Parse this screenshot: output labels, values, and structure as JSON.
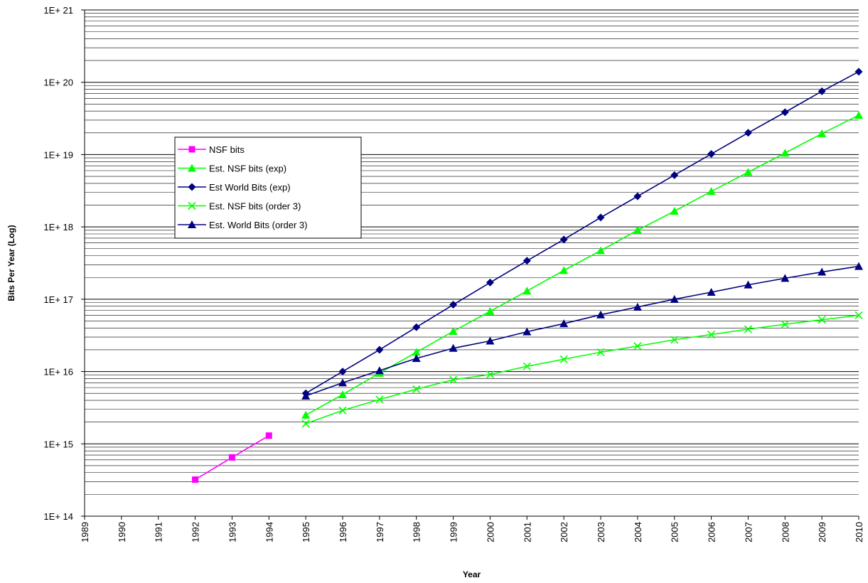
{
  "chart_data": {
    "type": "line",
    "title": "",
    "xlabel": "Year",
    "ylabel": "Bits Per Year (Log)",
    "yscale": "log",
    "ylim": [
      100000000000000.0,
      1e+21
    ],
    "x_categories": [
      "1989",
      "1990",
      "1991",
      "1992",
      "1993",
      "1994",
      "1995",
      "1996",
      "1997",
      "1998",
      "1999",
      "2000",
      "2001",
      "2002",
      "2003",
      "2004",
      "2005",
      "2006",
      "2007",
      "2008",
      "2009",
      "2010"
    ],
    "y_tick_labels": [
      "1E+ 14",
      "1E+ 15",
      "1E+ 16",
      "1E+ 17",
      "1E+ 18",
      "1E+ 19",
      "1E+ 20",
      "1E+ 21"
    ],
    "grid": true,
    "legend_position": "left-middle",
    "series": [
      {
        "name": "NSF bits",
        "color": "#ff00ff",
        "marker": "square",
        "x": [
          "1992",
          "1993",
          "1994"
        ],
        "values": [
          320000000000000.0,
          650000000000000.0,
          1300000000000000.0
        ]
      },
      {
        "name": "Est. NSF bits (exp)",
        "color": "#00ff00",
        "marker": "triangle",
        "x": [
          "1995",
          "1996",
          "1997",
          "1998",
          "1999",
          "2000",
          "2001",
          "2002",
          "2003",
          "2004",
          "2005",
          "2006",
          "2007",
          "2008",
          "2009",
          "2010"
        ],
        "values": [
          2500000000000000.0,
          4800000000000000.0,
          9500000000000000.0,
          1.85e+16,
          3.6e+16,
          6.8e+16,
          1.3e+17,
          2.5e+17,
          4.7e+17,
          9e+17,
          1.65e+18,
          3.1e+18,
          5.7e+18,
          1.05e+19,
          1.95e+19,
          3.5e+19
        ]
      },
      {
        "name": "Est World Bits (exp)",
        "color": "#000080",
        "marker": "diamond",
        "x": [
          "1995",
          "1996",
          "1997",
          "1998",
          "1999",
          "2000",
          "2001",
          "2002",
          "2003",
          "2004",
          "2005",
          "2006",
          "2007",
          "2008",
          "2009",
          "2010"
        ],
        "values": [
          5000000000000000.0,
          1e+16,
          2e+16,
          4.1e+16,
          8.4e+16,
          1.7e+17,
          3.4e+17,
          6.7e+17,
          1.35e+18,
          2.65e+18,
          5.2e+18,
          1.02e+19,
          2e+19,
          3.85e+19,
          7.5e+19,
          1.4e+20
        ]
      },
      {
        "name": "Est. NSF bits (order 3)",
        "color": "#00ff00",
        "marker": "x",
        "x": [
          "1995",
          "1996",
          "1997",
          "1998",
          "1999",
          "2000",
          "2001",
          "2002",
          "2003",
          "2004",
          "2005",
          "2006",
          "2007",
          "2008",
          "2009",
          "2010"
        ],
        "values": [
          1900000000000000.0,
          2900000000000000.0,
          4100000000000000.0,
          5700000000000000.0,
          7700000000000000.0,
          9100000000000000.0,
          1.18e+16,
          1.48e+16,
          1.85e+16,
          2.25e+16,
          2.75e+16,
          3.25e+16,
          3.85e+16,
          4.5e+16,
          5.2e+16,
          6e+16
        ]
      },
      {
        "name": "Est. World Bits (order 3)",
        "color": "#000080",
        "marker": "triangle",
        "x": [
          "1995",
          "1996",
          "1997",
          "1998",
          "1999",
          "2000",
          "2001",
          "2002",
          "2003",
          "2004",
          "2005",
          "2006",
          "2007",
          "2008",
          "2009",
          "2010"
        ],
        "values": [
          4600000000000000.0,
          7000000000000000.0,
          1.03e+16,
          1.52e+16,
          2.1e+16,
          2.65e+16,
          3.55e+16,
          4.6e+16,
          6.1e+16,
          7.8e+16,
          1e+17,
          1.25e+17,
          1.58e+17,
          1.95e+17,
          2.38e+17,
          2.85e+17
        ]
      }
    ]
  }
}
